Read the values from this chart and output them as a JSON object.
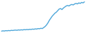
{
  "line_color": "#4da6d9",
  "background_color": "#ffffff",
  "linewidth": 1.0,
  "y_values": [
    1.0,
    1.3,
    1.1,
    1.5,
    1.3,
    1.6,
    1.4,
    1.8,
    1.6,
    1.9,
    2.0,
    1.8,
    2.2,
    2.0,
    2.3,
    2.1,
    2.5,
    2.3,
    2.6,
    2.4,
    2.8,
    2.6,
    3.0,
    2.8,
    3.2,
    3.0,
    3.5,
    3.3,
    3.8,
    3.5,
    4.5,
    5.5,
    7.0,
    9.0,
    11.5,
    13.5,
    15.5,
    17.0,
    18.5,
    19.5,
    21.0,
    22.5,
    23.0,
    22.0,
    23.5,
    24.5,
    25.5,
    26.0,
    25.5,
    26.5,
    27.0,
    26.5,
    27.5,
    28.0,
    27.5,
    28.5,
    28.0,
    29.0,
    28.5,
    29.5
  ]
}
